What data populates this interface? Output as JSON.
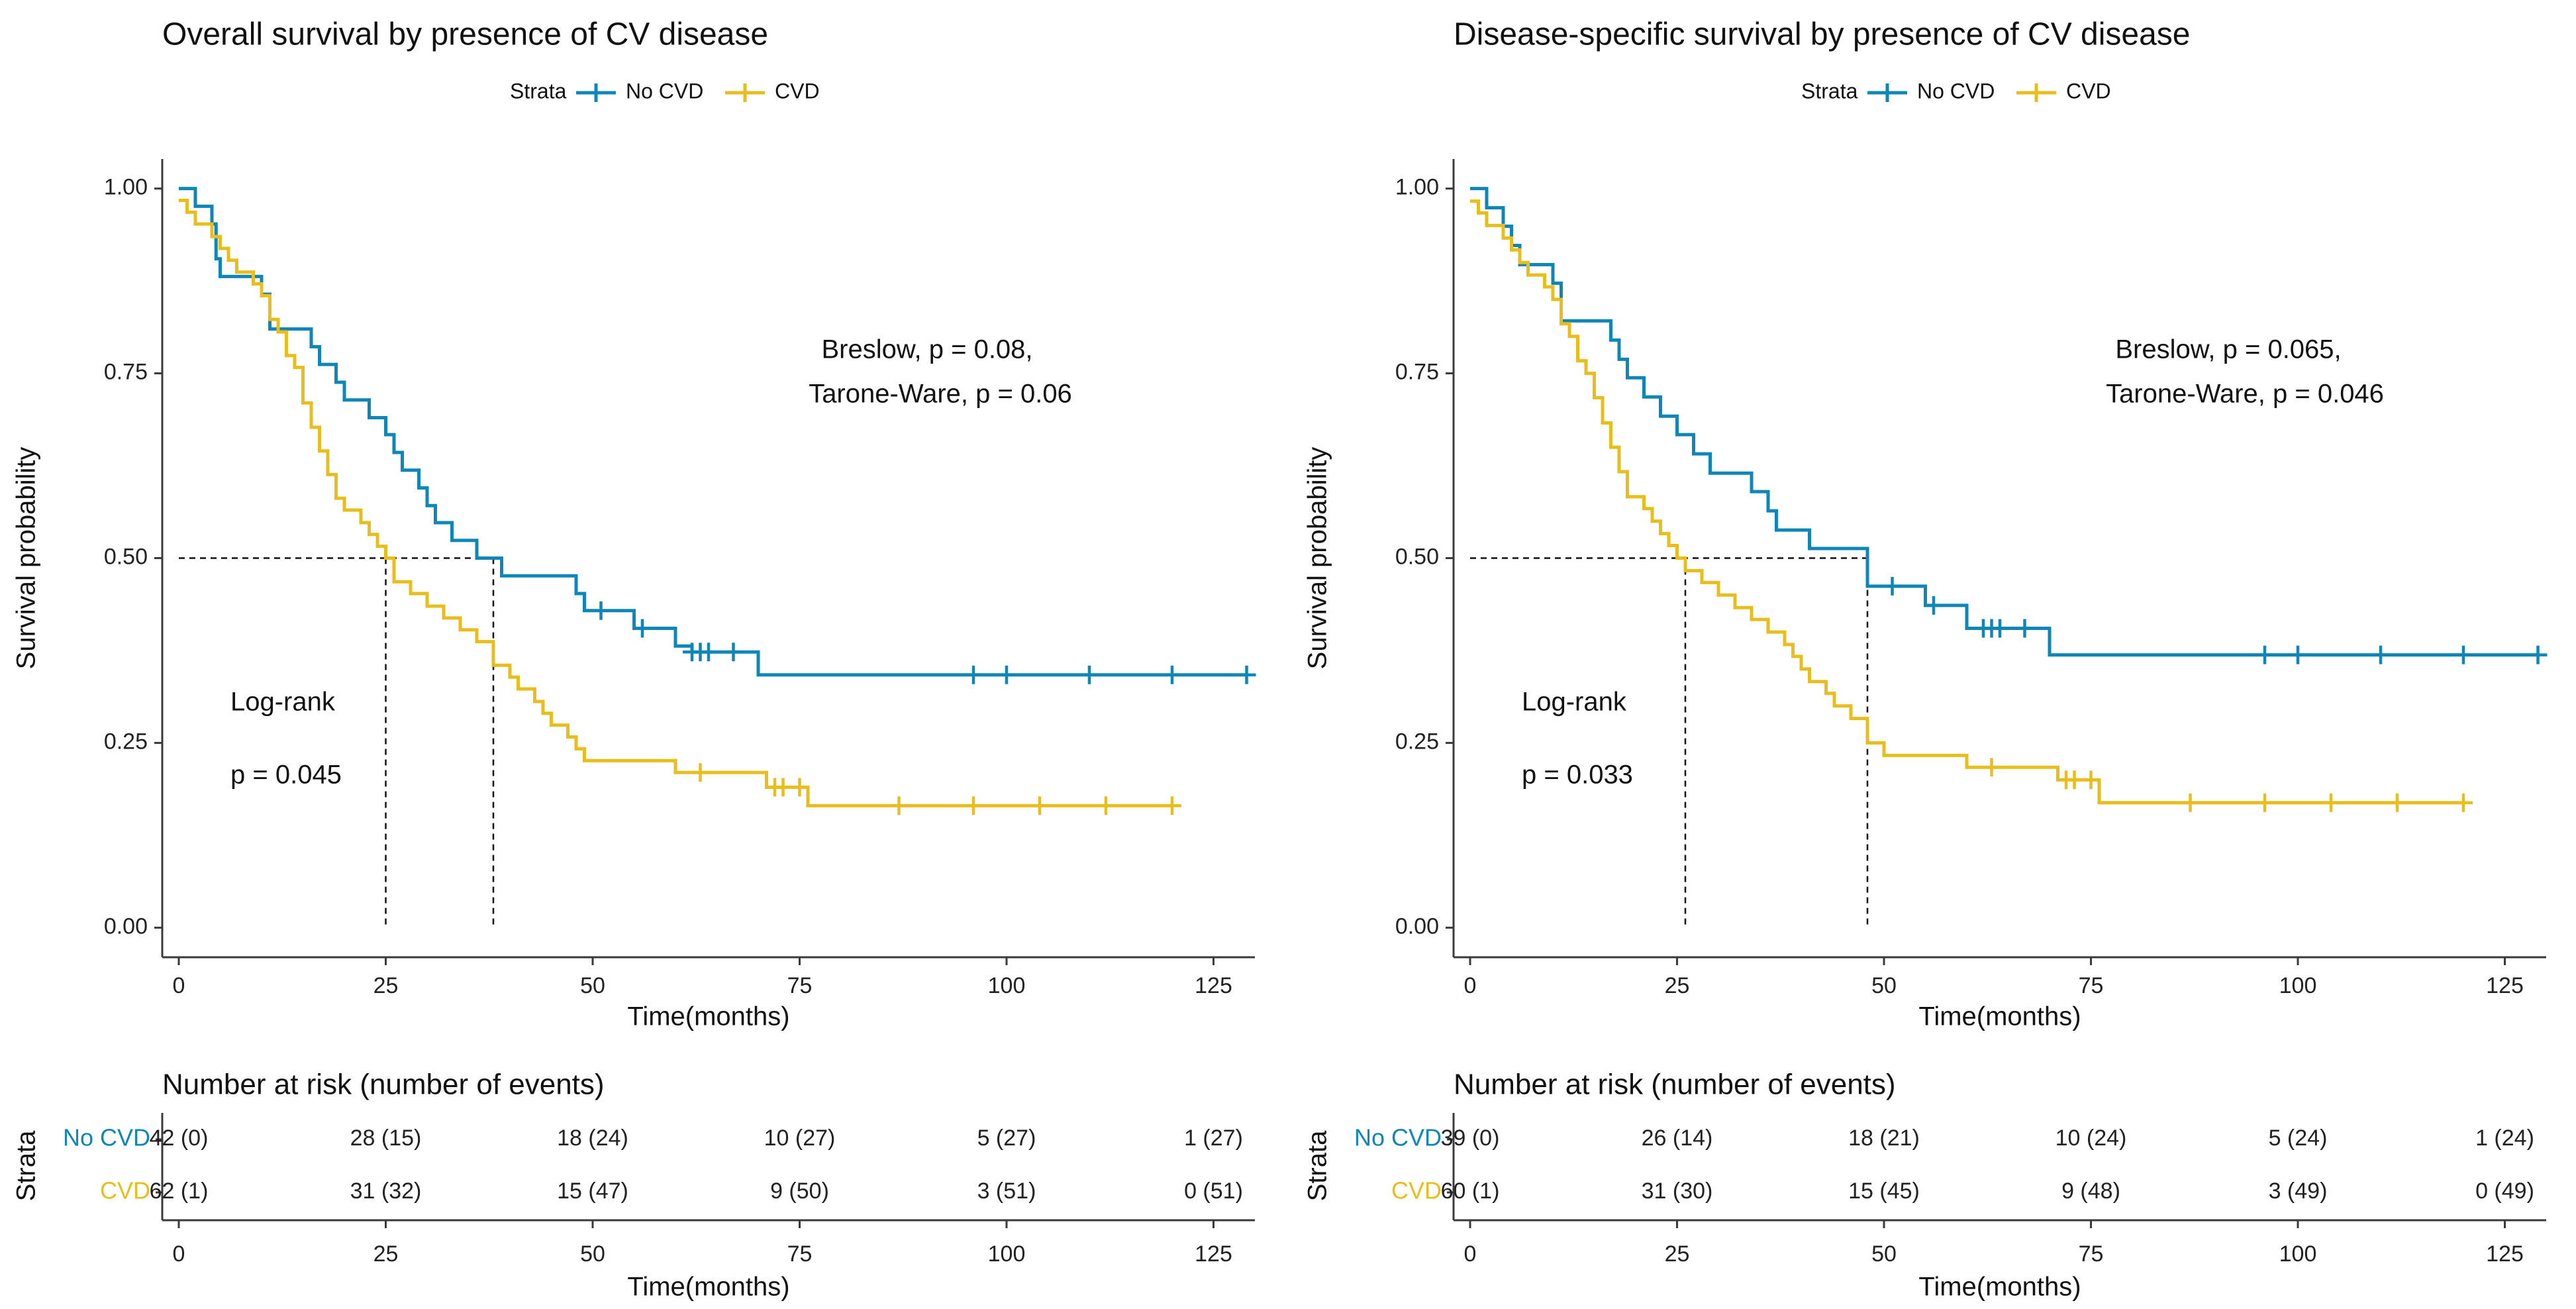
{
  "chart_data": [
    {
      "type": "line",
      "subtype": "kaplan-meier",
      "title": "Overall survival by presence of CV disease",
      "xlabel": "Time(months)",
      "ylabel": "Survival probability",
      "xlim": [
        -2,
        130
      ],
      "ylim": [
        -0.04,
        1.04
      ],
      "xticks": [
        0,
        25,
        50,
        75,
        100,
        125
      ],
      "xtick_labels": [
        "0",
        "25",
        "50",
        "75",
        "100",
        "125"
      ],
      "yticks": [
        0,
        0.25,
        0.5,
        0.75,
        1.0
      ],
      "ytick_labels": [
        "0.00",
        "0.25",
        "0.50",
        "0.75",
        "1.00"
      ],
      "legend": {
        "title": "Strata",
        "position": "top",
        "entries": [
          "No CVD",
          "CVD"
        ]
      },
      "annotations": {
        "test_line1": "Breslow, p = 0.08,",
        "test_line2": "Tarone-Ware, p = 0.06",
        "logrank_label": "Log-rank",
        "logrank_p": "p = 0.045"
      },
      "medians": [
        {
          "series": "CVD",
          "x": 25,
          "y": 0.5
        },
        {
          "series": "No CVD",
          "x": 38,
          "y": 0.5
        }
      ],
      "series": [
        {
          "name": "No CVD",
          "color": "#0f86b8",
          "steps": [
            [
              0,
              1.0
            ],
            [
              2,
              0.976
            ],
            [
              4,
              0.952
            ],
            [
              4.5,
              0.905
            ],
            [
              5,
              0.881
            ],
            [
              10,
              0.857
            ],
            [
              11,
              0.81
            ],
            [
              16,
              0.786
            ],
            [
              17,
              0.762
            ],
            [
              19,
              0.738
            ],
            [
              20,
              0.714
            ],
            [
              23,
              0.69
            ],
            [
              25,
              0.667
            ],
            [
              26,
              0.643
            ],
            [
              27,
              0.619
            ],
            [
              29,
              0.595
            ],
            [
              30,
              0.571
            ],
            [
              31,
              0.548
            ],
            [
              33,
              0.524
            ],
            [
              36,
              0.5
            ],
            [
              39,
              0.476
            ],
            [
              48,
              0.452
            ],
            [
              49,
              0.429
            ],
            [
              55,
              0.405
            ],
            [
              60,
              0.381
            ],
            [
              62,
              0.373
            ],
            [
              70,
              0.342
            ],
            [
              129,
              0.342
            ]
          ],
          "censors": [
            [
              51,
              0.429
            ],
            [
              56,
              0.405
            ],
            [
              62,
              0.373
            ],
            [
              63,
              0.373
            ],
            [
              64,
              0.373
            ],
            [
              67,
              0.373
            ],
            [
              96,
              0.342
            ],
            [
              100,
              0.342
            ],
            [
              110,
              0.342
            ],
            [
              120,
              0.342
            ],
            [
              129,
              0.342
            ]
          ]
        },
        {
          "name": "CVD",
          "color": "#e8be1d",
          "steps": [
            [
              0,
              0.984
            ],
            [
              1,
              0.968
            ],
            [
              2,
              0.952
            ],
            [
              4,
              0.935
            ],
            [
              5,
              0.919
            ],
            [
              6,
              0.903
            ],
            [
              7,
              0.887
            ],
            [
              9,
              0.871
            ],
            [
              10,
              0.855
            ],
            [
              11,
              0.823
            ],
            [
              12,
              0.806
            ],
            [
              13,
              0.774
            ],
            [
              14,
              0.758
            ],
            [
              15,
              0.71
            ],
            [
              16,
              0.677
            ],
            [
              17,
              0.645
            ],
            [
              18,
              0.613
            ],
            [
              19,
              0.581
            ],
            [
              20,
              0.565
            ],
            [
              22,
              0.548
            ],
            [
              23,
              0.532
            ],
            [
              24,
              0.516
            ],
            [
              25,
              0.5
            ],
            [
              26,
              0.468
            ],
            [
              28,
              0.452
            ],
            [
              30,
              0.435
            ],
            [
              32,
              0.419
            ],
            [
              34,
              0.403
            ],
            [
              36,
              0.387
            ],
            [
              38,
              0.355
            ],
            [
              40,
              0.339
            ],
            [
              41,
              0.323
            ],
            [
              43,
              0.306
            ],
            [
              44,
              0.29
            ],
            [
              45,
              0.274
            ],
            [
              47,
              0.258
            ],
            [
              48,
              0.242
            ],
            [
              49,
              0.226
            ],
            [
              52,
              0.226
            ],
            [
              60,
              0.21
            ],
            [
              68,
              0.21
            ],
            [
              71,
              0.19
            ],
            [
              76,
              0.165
            ],
            [
              120,
              0.165
            ]
          ],
          "censors": [
            [
              63,
              0.21
            ],
            [
              72,
              0.19
            ],
            [
              73,
              0.19
            ],
            [
              75,
              0.19
            ],
            [
              87,
              0.165
            ],
            [
              96,
              0.165
            ],
            [
              104,
              0.165
            ],
            [
              112,
              0.165
            ],
            [
              120,
              0.165
            ]
          ]
        }
      ],
      "risk_table": {
        "title": "Number at risk (number of events)",
        "ylabel": "Strata",
        "xlabel": "Time(months)",
        "times": [
          0,
          25,
          50,
          75,
          100,
          125
        ],
        "rows": [
          {
            "label": "No CVD",
            "values": [
              "42 (0)",
              "28 (15)",
              "18 (24)",
              "10 (27)",
              "5 (27)",
              "1 (27)"
            ]
          },
          {
            "label": "CVD",
            "values": [
              "62 (1)",
              "31 (32)",
              "15 (47)",
              "9 (50)",
              "3 (51)",
              "0 (51)"
            ]
          }
        ]
      }
    },
    {
      "type": "line",
      "subtype": "kaplan-meier",
      "title": "Disease-specific survival by presence of CV disease",
      "xlabel": "Time(months)",
      "ylabel": "Survival probability",
      "xlim": [
        -2,
        130
      ],
      "ylim": [
        -0.04,
        1.04
      ],
      "xticks": [
        0,
        25,
        50,
        75,
        100,
        125
      ],
      "xtick_labels": [
        "0",
        "25",
        "50",
        "75",
        "100",
        "125"
      ],
      "yticks": [
        0,
        0.25,
        0.5,
        0.75,
        1.0
      ],
      "ytick_labels": [
        "0.00",
        "0.25",
        "0.50",
        "0.75",
        "1.00"
      ],
      "legend": {
        "title": "Strata",
        "position": "top",
        "entries": [
          "No CVD",
          "CVD"
        ]
      },
      "annotations": {
        "test_line1": "Breslow, p = 0.065,",
        "test_line2": "Tarone-Ware, p = 0.046",
        "logrank_label": "Log-rank",
        "logrank_p": "p = 0.033"
      },
      "medians": [
        {
          "series": "CVD",
          "x": 26,
          "y": 0.5
        },
        {
          "series": "No CVD",
          "x": 48,
          "y": 0.5
        }
      ],
      "series": [
        {
          "name": "No CVD",
          "color": "#0f86b8",
          "steps": [
            [
              0,
              1.0
            ],
            [
              2,
              0.974
            ],
            [
              4,
              0.949
            ],
            [
              5,
              0.923
            ],
            [
              6,
              0.897
            ],
            [
              10,
              0.872
            ],
            [
              11,
              0.821
            ],
            [
              17,
              0.795
            ],
            [
              18,
              0.769
            ],
            [
              19,
              0.744
            ],
            [
              21,
              0.718
            ],
            [
              23,
              0.692
            ],
            [
              25,
              0.667
            ],
            [
              27,
              0.641
            ],
            [
              29,
              0.615
            ],
            [
              34,
              0.59
            ],
            [
              36,
              0.564
            ],
            [
              37,
              0.538
            ],
            [
              41,
              0.513
            ],
            [
              48,
              0.462
            ],
            [
              55,
              0.436
            ],
            [
              60,
              0.405
            ],
            [
              70,
              0.369
            ],
            [
              129,
              0.369
            ]
          ],
          "censors": [
            [
              51,
              0.462
            ],
            [
              56,
              0.436
            ],
            [
              62,
              0.405
            ],
            [
              63,
              0.405
            ],
            [
              64,
              0.405
            ],
            [
              67,
              0.405
            ],
            [
              96,
              0.369
            ],
            [
              100,
              0.369
            ],
            [
              110,
              0.369
            ],
            [
              120,
              0.369
            ],
            [
              129,
              0.369
            ]
          ]
        },
        {
          "name": "CVD",
          "color": "#e8be1d",
          "steps": [
            [
              0,
              0.983
            ],
            [
              1,
              0.967
            ],
            [
              2,
              0.95
            ],
            [
              4,
              0.933
            ],
            [
              5,
              0.917
            ],
            [
              6,
              0.9
            ],
            [
              7,
              0.883
            ],
            [
              9,
              0.867
            ],
            [
              10,
              0.85
            ],
            [
              11,
              0.817
            ],
            [
              12,
              0.8
            ],
            [
              13,
              0.767
            ],
            [
              14,
              0.75
            ],
            [
              15,
              0.717
            ],
            [
              16,
              0.683
            ],
            [
              17,
              0.65
            ],
            [
              18,
              0.617
            ],
            [
              19,
              0.583
            ],
            [
              21,
              0.567
            ],
            [
              22,
              0.55
            ],
            [
              23,
              0.533
            ],
            [
              24,
              0.517
            ],
            [
              25,
              0.5
            ],
            [
              26,
              0.483
            ],
            [
              28,
              0.467
            ],
            [
              30,
              0.45
            ],
            [
              32,
              0.433
            ],
            [
              34,
              0.417
            ],
            [
              36,
              0.4
            ],
            [
              38,
              0.383
            ],
            [
              39,
              0.367
            ],
            [
              40,
              0.35
            ],
            [
              41,
              0.333
            ],
            [
              43,
              0.317
            ],
            [
              44,
              0.3
            ],
            [
              46,
              0.283
            ],
            [
              48,
              0.25
            ],
            [
              50,
              0.233
            ],
            [
              60,
              0.217
            ],
            [
              68,
              0.217
            ],
            [
              71,
              0.2
            ],
            [
              76,
              0.169
            ],
            [
              120,
              0.169
            ]
          ],
          "censors": [
            [
              63,
              0.217
            ],
            [
              72,
              0.2
            ],
            [
              73,
              0.2
            ],
            [
              75,
              0.2
            ],
            [
              87,
              0.169
            ],
            [
              96,
              0.169
            ],
            [
              104,
              0.169
            ],
            [
              112,
              0.169
            ],
            [
              120,
              0.169
            ]
          ]
        }
      ],
      "risk_table": {
        "title": "Number at risk (number of events)",
        "ylabel": "Strata",
        "xlabel": "Time(months)",
        "times": [
          0,
          25,
          50,
          75,
          100,
          125
        ],
        "rows": [
          {
            "label": "No CVD",
            "values": [
              "39 (0)",
              "26 (14)",
              "18 (21)",
              "10 (24)",
              "5 (24)",
              "1 (24)"
            ]
          },
          {
            "label": "CVD",
            "values": [
              "60 (1)",
              "31 (30)",
              "15 (45)",
              "9 (48)",
              "3 (49)",
              "0 (49)"
            ]
          }
        ]
      }
    }
  ]
}
